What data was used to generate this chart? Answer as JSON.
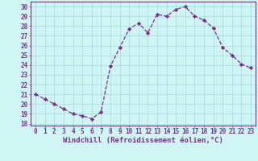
{
  "x": [
    0,
    1,
    2,
    3,
    4,
    5,
    6,
    7,
    8,
    9,
    10,
    11,
    12,
    13,
    14,
    15,
    16,
    17,
    18,
    19,
    20,
    21,
    22,
    23
  ],
  "y": [
    21.0,
    20.5,
    20.0,
    19.5,
    19.0,
    18.8,
    18.5,
    19.2,
    23.9,
    25.8,
    27.7,
    28.3,
    27.3,
    29.2,
    29.0,
    29.7,
    30.0,
    29.0,
    28.6,
    27.8,
    25.8,
    25.0,
    24.1,
    23.7
  ],
  "line_color": "#7b2d8b",
  "marker": "D",
  "marker_size": 2.2,
  "xlabel": "Windchill (Refroidissement éolien,°C)",
  "xlabel_fontsize": 6.5,
  "ylabel_ticks": [
    18,
    19,
    20,
    21,
    22,
    23,
    24,
    25,
    26,
    27,
    28,
    29,
    30
  ],
  "xlim": [
    -0.5,
    23.5
  ],
  "ylim": [
    17.8,
    30.5
  ],
  "background_color": "#cff5f5",
  "grid_color": "#aadddd",
  "tick_color": "#7b2d8b",
  "tick_fontsize": 5.5,
  "xlabel_color": "#7b2d8b"
}
